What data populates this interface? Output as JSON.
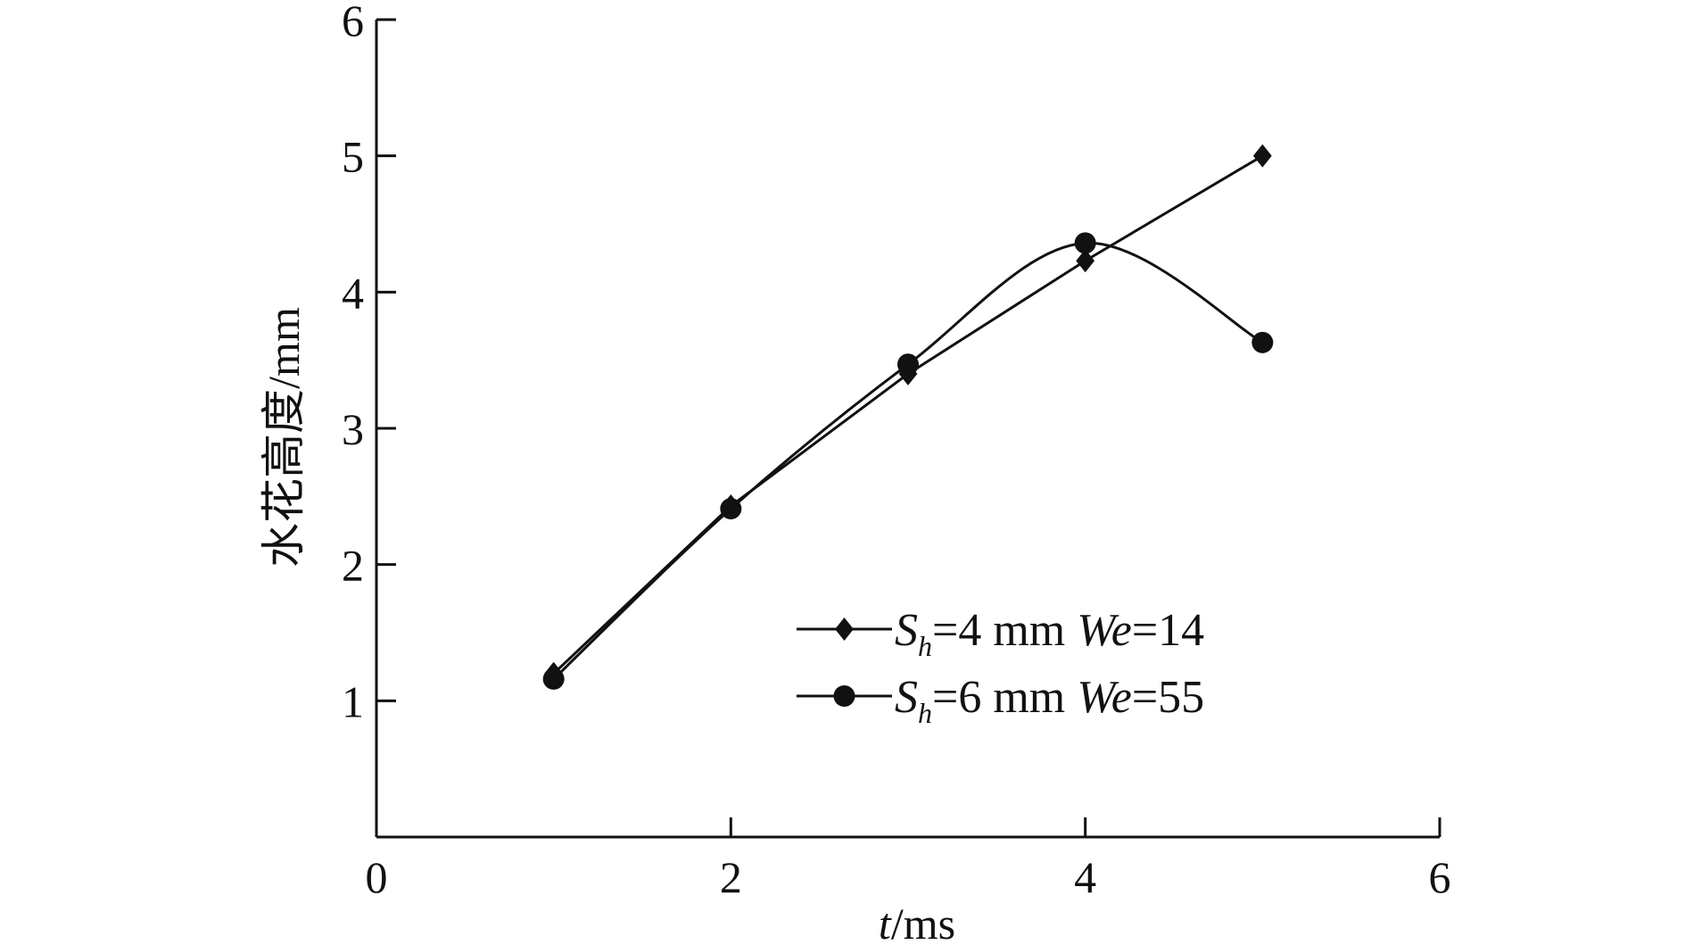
{
  "chart_data": {
    "type": "line",
    "title": "",
    "xlabel": {
      "var": "t",
      "unit": "/ms"
    },
    "ylabel": "水花高度/mm",
    "xlim": [
      0,
      6
    ],
    "ylim": [
      0,
      6
    ],
    "x_ticks": [
      "0",
      "2",
      "4",
      "6"
    ],
    "y_ticks": [
      "1",
      "2",
      "3",
      "4",
      "5",
      "6"
    ],
    "grid": false,
    "legend_position": "lower-right",
    "series": [
      {
        "marker": "diamond",
        "line": "straight",
        "legend": {
          "s": "S",
          "sub": "h",
          "mid": "=4 mm ",
          "we": "We",
          "tail": "=14"
        },
        "x": [
          1,
          2,
          3,
          4,
          5
        ],
        "y": [
          1.2,
          2.43,
          3.4,
          4.23,
          5.0
        ]
      },
      {
        "marker": "circle",
        "line": "smooth",
        "legend": {
          "s": "S",
          "sub": "h",
          "mid": "=6 mm ",
          "we": "We",
          "tail": "=55"
        },
        "x": [
          1,
          2,
          3,
          4,
          5
        ],
        "y": [
          1.16,
          2.41,
          3.47,
          4.36,
          3.63
        ]
      }
    ]
  }
}
